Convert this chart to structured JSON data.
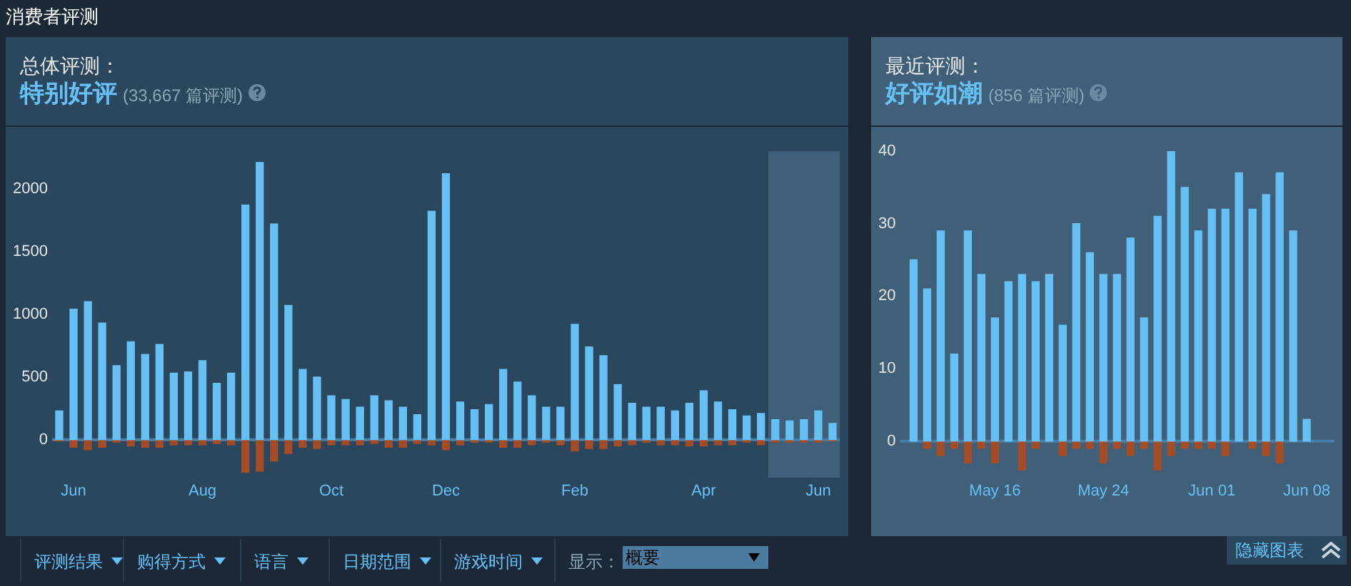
{
  "chart_data": [
    {
      "type": "bar",
      "title": "总体评测：",
      "subtitle": "特别好评",
      "annotations": [
        "(33,667 篇评测)"
      ],
      "stacked": true,
      "categories": [
        null,
        "Jun",
        null,
        null,
        null,
        null,
        null,
        null,
        null,
        null,
        "Aug",
        null,
        null,
        null,
        null,
        null,
        null,
        null,
        null,
        "Oct",
        null,
        null,
        null,
        null,
        null,
        null,
        null,
        "Dec",
        null,
        null,
        null,
        null,
        null,
        null,
        null,
        null,
        "Feb",
        null,
        null,
        null,
        null,
        null,
        null,
        null,
        null,
        "Apr",
        null,
        null,
        null,
        null,
        null,
        null,
        null,
        "Jun",
        null
      ],
      "series": [
        {
          "color": "#66c0f4",
          "values": [
            230,
            1040,
            1100,
            930,
            590,
            780,
            680,
            760,
            530,
            540,
            630,
            450,
            530,
            1870,
            2210,
            1720,
            1070,
            560,
            500,
            350,
            320,
            260,
            350,
            310,
            260,
            200,
            1820,
            2120,
            300,
            240,
            280,
            560,
            460,
            350,
            260,
            260,
            920,
            740,
            670,
            440,
            290,
            260,
            260,
            230,
            290,
            390,
            300,
            240,
            190,
            210,
            160,
            150,
            160,
            230,
            130
          ]
        },
        {
          "color": "#a34c25",
          "values": [
            -10,
            -60,
            -80,
            -60,
            -20,
            -50,
            -60,
            -60,
            -40,
            -40,
            -40,
            -30,
            -40,
            -260,
            -250,
            -170,
            -110,
            -60,
            -70,
            -40,
            -40,
            -40,
            -30,
            -60,
            -60,
            -30,
            -40,
            -80,
            -40,
            -20,
            -20,
            -60,
            -60,
            -40,
            -20,
            -40,
            -90,
            -70,
            -70,
            -50,
            -40,
            -20,
            -40,
            -40,
            -50,
            -50,
            -40,
            -40,
            -20,
            -40,
            -20,
            -20,
            -20,
            -20,
            -10
          ]
        }
      ],
      "ylim": [
        -300,
        2300
      ],
      "yticks": [
        0,
        500,
        1000,
        1500,
        2000
      ],
      "ref_lines": [
        {
          "axis": "y",
          "value": 0,
          "color": "#4c7fa8"
        }
      ]
    },
    {
      "type": "bar",
      "title": "最近评测：",
      "subtitle": "好评如潮",
      "annotations": [
        "(856 篇评测)"
      ],
      "stacked": true,
      "x": [
        "--05-10",
        "--05-11",
        "--05-12",
        "--05-13",
        "--05-14",
        "--05-15",
        "--05-16",
        "--05-17",
        "--05-18",
        "--05-19",
        "--05-20",
        "--05-21",
        "--05-22",
        "--05-23",
        "--05-24",
        "--05-25",
        "--05-26",
        "--05-27",
        "--05-28",
        "--05-29",
        "--05-30",
        "--05-31",
        "--06-01",
        "--06-02",
        "--06-03",
        "--06-04",
        "--06-05",
        "--06-06",
        "--06-07",
        "--06-08"
      ],
      "series": [
        {
          "color": "#66c0f4",
          "values": [
            25,
            21,
            29,
            12,
            29,
            23,
            17,
            22,
            23,
            22,
            23,
            16,
            30,
            26,
            23,
            23,
            28,
            17,
            31,
            40,
            35,
            29,
            32,
            32,
            37,
            32,
            34,
            37,
            29,
            3
          ]
        },
        {
          "color": "#a34c25",
          "values": [
            0,
            -1,
            -2,
            -1,
            -3,
            -1,
            -3,
            0,
            -4,
            -1,
            0,
            -2,
            -1,
            -1,
            -3,
            -1,
            -2,
            -1,
            -4,
            -2,
            -1,
            -1,
            -1,
            -2,
            0,
            -1,
            -2,
            -3,
            0,
            0
          ]
        }
      ],
      "xlim": [
        "--05-09",
        "--06-10"
      ],
      "xticks": [
        {
          "value": "--05-16",
          "label": "May 16"
        },
        {
          "value": "--05-24",
          "label": "May 24"
        },
        {
          "value": "--06-01",
          "label": "Jun 01"
        },
        {
          "value": "--06-08",
          "label": "Jun 08"
        }
      ],
      "ylim": [
        -5,
        40
      ],
      "yticks": [
        0,
        10,
        20,
        30,
        40
      ],
      "ref_lines": [
        {
          "axis": "y",
          "value": 0,
          "color": "#4c7fa8"
        }
      ]
    },
    {
      "type": "other",
      "title": "消费者评测",
      "annotations": [
        "评测结果",
        "购得方式",
        "语言",
        "日期范围",
        "游戏时间",
        "显示：",
        "概要",
        "隐藏图表"
      ]
    }
  ]
}
